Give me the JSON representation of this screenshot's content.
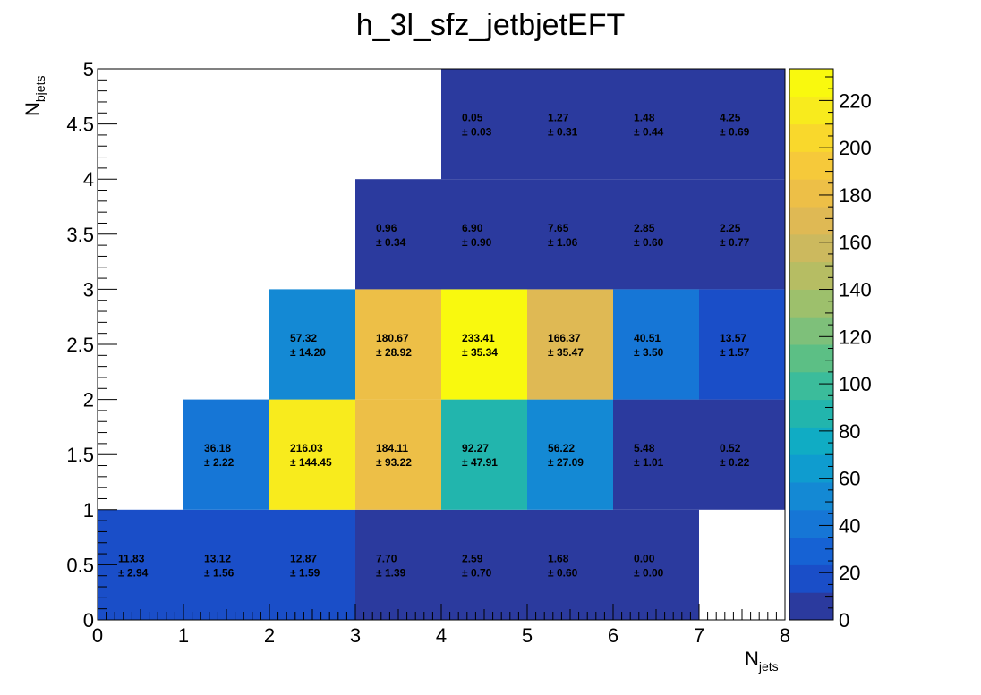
{
  "chart_data": {
    "type": "heatmap",
    "title": "h_3l_sfz_jetbjetEFT",
    "xlabel": {
      "main": "N",
      "sub": "jets"
    },
    "ylabel": {
      "main": "N",
      "sub": "bjets"
    },
    "xlim": [
      0,
      8
    ],
    "ylim": [
      0,
      5
    ],
    "x_ticks": [
      "0",
      "1",
      "2",
      "3",
      "4",
      "5",
      "6",
      "7",
      "8"
    ],
    "y_ticks": [
      "0",
      "0.5",
      "1",
      "1.5",
      "2",
      "2.5",
      "3",
      "3.5",
      "4",
      "4.5",
      "5"
    ],
    "z_range": [
      0,
      233.41
    ],
    "z_ticks": [
      "0",
      "20",
      "40",
      "60",
      "80",
      "100",
      "120",
      "140",
      "160",
      "180",
      "200",
      "220"
    ],
    "palette": [
      "#2b3a9e",
      "#1a4ec8",
      "#1662d4",
      "#1676d6",
      "#1489d4",
      "#0f9ccf",
      "#10acc4",
      "#22b5ad",
      "#3bbc9b",
      "#5cbf85",
      "#7ec07a",
      "#9dc06c",
      "#b6bd63",
      "#ccb95e",
      "#dfb954",
      "#edbf47",
      "#f6c93a",
      "#f9d82c",
      "#f8eb1d",
      "#f9f90e"
    ],
    "cells": [
      {
        "x": 0,
        "y": 0,
        "value": 11.83,
        "label": "11.83",
        "err": "± 2.94"
      },
      {
        "x": 1,
        "y": 0,
        "value": 13.12,
        "label": "13.12",
        "err": "± 1.56"
      },
      {
        "x": 2,
        "y": 0,
        "value": 12.87,
        "label": "12.87",
        "err": "± 1.59"
      },
      {
        "x": 3,
        "y": 0,
        "value": 7.7,
        "label": "7.70",
        "err": "± 1.39"
      },
      {
        "x": 4,
        "y": 0,
        "value": 2.59,
        "label": "2.59",
        "err": "± 0.70"
      },
      {
        "x": 5,
        "y": 0,
        "value": 1.68,
        "label": "1.68",
        "err": "± 0.60"
      },
      {
        "x": 6,
        "y": 0,
        "value": 0.0,
        "label": "0.00",
        "err": "± 0.00"
      },
      {
        "x": 1,
        "y": 1,
        "value": 36.18,
        "label": "36.18",
        "err": "± 2.22"
      },
      {
        "x": 2,
        "y": 1,
        "value": 216.03,
        "label": "216.03",
        "err": "± 144.45"
      },
      {
        "x": 3,
        "y": 1,
        "value": 184.11,
        "label": "184.11",
        "err": "± 93.22"
      },
      {
        "x": 4,
        "y": 1,
        "value": 92.27,
        "label": "92.27",
        "err": "± 47.91"
      },
      {
        "x": 5,
        "y": 1,
        "value": 56.22,
        "label": "56.22",
        "err": "± 27.09"
      },
      {
        "x": 6,
        "y": 1,
        "value": 5.48,
        "label": "5.48",
        "err": "± 1.01"
      },
      {
        "x": 7,
        "y": 1,
        "value": 0.52,
        "label": "0.52",
        "err": "± 0.22"
      },
      {
        "x": 2,
        "y": 2,
        "value": 57.32,
        "label": "57.32",
        "err": "± 14.20"
      },
      {
        "x": 3,
        "y": 2,
        "value": 180.67,
        "label": "180.67",
        "err": "± 28.92"
      },
      {
        "x": 4,
        "y": 2,
        "value": 233.41,
        "label": "233.41",
        "err": "± 35.34"
      },
      {
        "x": 5,
        "y": 2,
        "value": 166.37,
        "label": "166.37",
        "err": "± 35.47"
      },
      {
        "x": 6,
        "y": 2,
        "value": 40.51,
        "label": "40.51",
        "err": "± 3.50"
      },
      {
        "x": 7,
        "y": 2,
        "value": 13.57,
        "label": "13.57",
        "err": "± 1.57"
      },
      {
        "x": 3,
        "y": 3,
        "value": 0.96,
        "label": "0.96",
        "err": "± 0.34"
      },
      {
        "x": 4,
        "y": 3,
        "value": 6.9,
        "label": "6.90",
        "err": "± 0.90"
      },
      {
        "x": 5,
        "y": 3,
        "value": 7.65,
        "label": "7.65",
        "err": "± 1.06"
      },
      {
        "x": 6,
        "y": 3,
        "value": 2.85,
        "label": "2.85",
        "err": "± 0.60"
      },
      {
        "x": 7,
        "y": 3,
        "value": 2.25,
        "label": "2.25",
        "err": "± 0.77"
      },
      {
        "x": 4,
        "y": 4,
        "value": 0.05,
        "label": "0.05",
        "err": "± 0.03"
      },
      {
        "x": 5,
        "y": 4,
        "value": 1.27,
        "label": "1.27",
        "err": "± 0.31"
      },
      {
        "x": 6,
        "y": 4,
        "value": 1.48,
        "label": "1.48",
        "err": "± 0.44"
      },
      {
        "x": 7,
        "y": 4,
        "value": 4.25,
        "label": "4.25",
        "err": "± 0.69"
      }
    ]
  }
}
